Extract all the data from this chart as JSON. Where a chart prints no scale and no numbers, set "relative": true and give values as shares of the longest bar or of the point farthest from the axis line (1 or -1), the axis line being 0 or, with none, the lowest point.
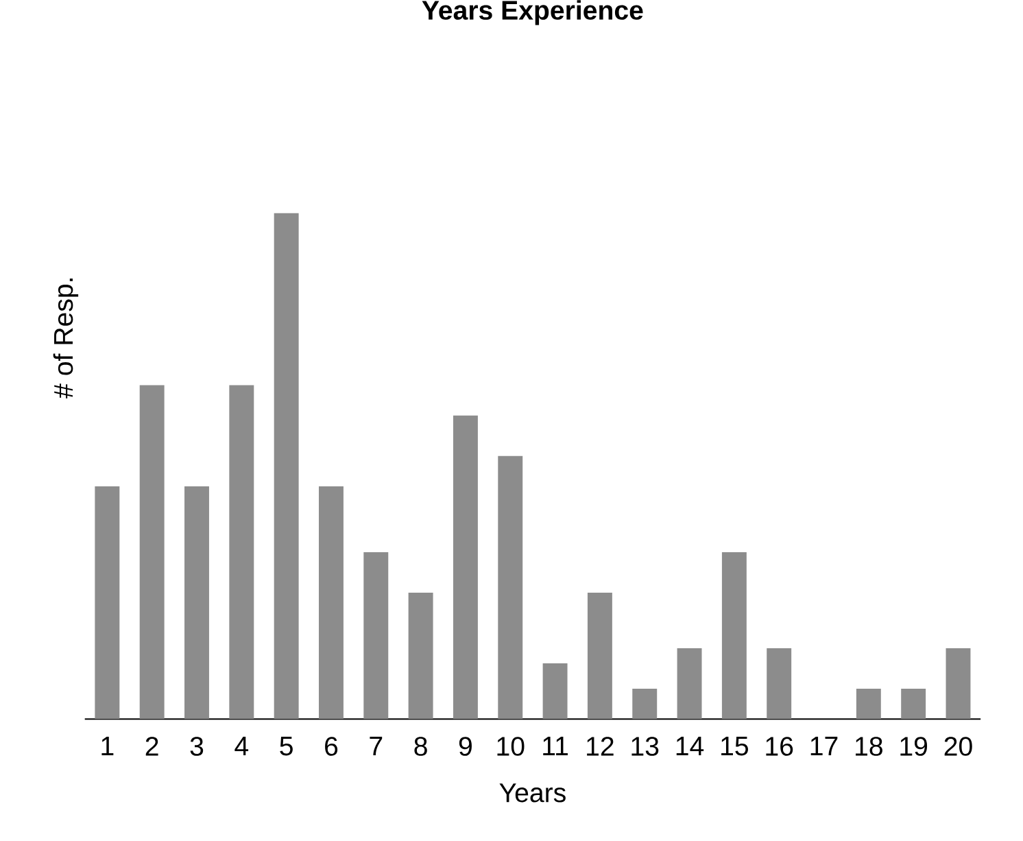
{
  "chart_data": {
    "type": "bar",
    "title": "Years Experience",
    "xlabel": "Years",
    "ylabel": "# of Resp.",
    "relative": true,
    "color": "#8c8c8c",
    "categories": [
      "1",
      "2",
      "3",
      "4",
      "5",
      "6",
      "7",
      "8",
      "9",
      "10",
      "11",
      "12",
      "13",
      "14",
      "15",
      "16",
      "17",
      "18",
      "19",
      "20"
    ],
    "values": [
      0.46,
      0.66,
      0.46,
      0.66,
      1,
      0.46,
      0.33,
      0.25,
      0.6,
      0.52,
      0.11,
      0.25,
      0.06,
      0.14,
      0.33,
      0.14,
      0,
      0.06,
      0.06,
      0.14
    ]
  }
}
